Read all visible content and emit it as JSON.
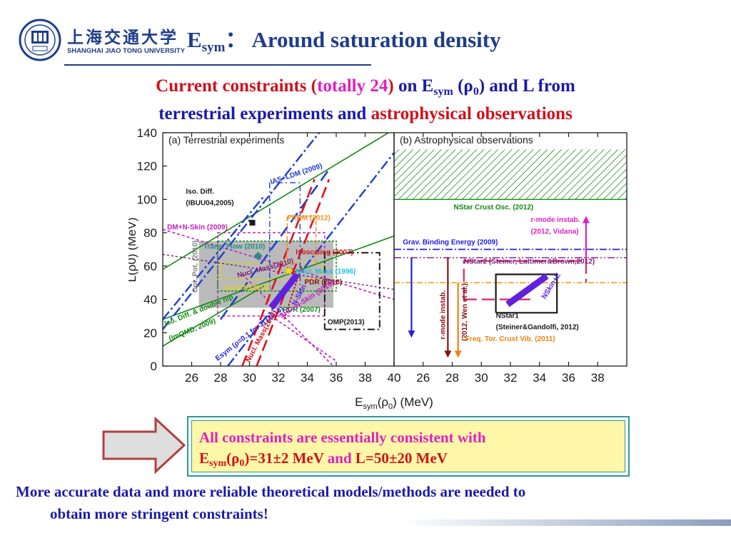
{
  "header": {
    "logo_cn": "上海交通大学",
    "logo_en": "SHANGHAI JIAO TONG UNIVERSITY",
    "logo_year": "1896",
    "title_main": "E",
    "title_sub": "sym",
    "title_rest": "： Around saturation density"
  },
  "heading": {
    "p1": "Current constraints (",
    "p2": "totally 24",
    "p3": ")",
    "p4": " on E",
    "p4_sub": "sym",
    "p5": " (ρ",
    "p5_sub": "0",
    "p6": ") and L from",
    "p7": "terrestrial experiments and ",
    "p8": "astrophysical observations"
  },
  "chart_data": [
    {
      "type": "line",
      "title": "(a) Terrestrial experiments",
      "xlim": [
        24,
        40
      ],
      "ylim": [
        0,
        140
      ],
      "xticks": [
        26,
        28,
        30,
        32,
        34,
        36,
        38,
        40
      ],
      "yticks": [
        0,
        20,
        40,
        60,
        80,
        100,
        120,
        140
      ],
      "xlabel_main": "E",
      "xlabel_sub": "sym",
      "xlabel_mid": "(ρ",
      "xlabel_sub2": "0",
      "xlabel_end": ") (MeV)",
      "ylabel": "L(ρ0) (MeV)",
      "grid": false,
      "series": [
        {
          "name": "Iso. Diff. (IBUU04,2005)",
          "color": "#1a1a1a"
        },
        {
          "name": "IAS+LDM (2009)",
          "color": "#1f3fd0"
        },
        {
          "name": "DM+N-Skin (2009)",
          "color": "#c020c0"
        },
        {
          "name": "FRDM (2012)",
          "color": "#f09020"
        },
        {
          "name": "Trans. Flow (2010)",
          "color": "#2a8a8a"
        },
        {
          "name": "Opt. Pot. (2010)",
          "color": "#808080"
        },
        {
          "name": "Nucl. Mass(2010)",
          "color": "#7a1a7a"
        },
        {
          "name": "Isoscaling (2007)",
          "color": "#d0111b"
        },
        {
          "name": "Iso.Diff.(2010)",
          "color": "#e0d020"
        },
        {
          "name": "Nucl. Mass (1996)",
          "color": "#20c0e0"
        },
        {
          "name": "PDR (2010)",
          "color": "#8a1010"
        },
        {
          "name": "Iso. Diff. & double n/p (ImQMD, 2009)",
          "color": "#108a10"
        },
        {
          "name": "PDR (2007)",
          "color": "#108a10"
        },
        {
          "name": "N-Skin",
          "color": "#6020e0"
        },
        {
          "name": "Esym (ρ=0.1 fm-3) (2013)",
          "color": "#2020e0"
        },
        {
          "name": "Nucl. Mass(2012)",
          "color": "#d0111b"
        },
        {
          "name": "SHF+N-Skin (2010)",
          "color": "#c020c0"
        },
        {
          "name": "OMP(2013)",
          "color": "#1a1a1a"
        }
      ],
      "lines": [
        {
          "color": "#108a10",
          "dash": "none",
          "width": 1.6,
          "points": [
            [
              24,
              58
            ],
            [
              40,
              142
            ]
          ]
        },
        {
          "color": "#108a10",
          "dash": "none",
          "width": 1.6,
          "points": [
            [
              24,
              28
            ],
            [
              40,
              78
            ]
          ]
        },
        {
          "color": "#108a10",
          "dash": "none",
          "width": 1.6,
          "points": [
            [
              24,
              12
            ],
            [
              31,
              48
            ]
          ]
        },
        {
          "color": "#1f3fd0",
          "dash": "14 4 3 4",
          "width": 2.4,
          "points": [
            [
              24,
              22
            ],
            [
              35,
              142
            ]
          ]
        },
        {
          "color": "#1f3fd0",
          "dash": "14 4 3 4",
          "width": 2.4,
          "points": [
            [
              28.5,
              0
            ],
            [
              40,
              128
            ]
          ]
        },
        {
          "color": "#1f3fd0",
          "dash": "14 4 3 4",
          "width": 2.4,
          "points": [
            [
              24,
              28
            ],
            [
              31,
              102
            ]
          ]
        },
        {
          "color": "#1f3fd0",
          "dash": "16 8",
          "width": 2.6,
          "points": [
            [
              28,
              28
            ],
            [
              35.5,
              118
            ]
          ]
        },
        {
          "color": "#c020c0",
          "dash": "4 3",
          "width": 1.6,
          "points": [
            [
              24,
              82
            ],
            [
              40,
              40
            ]
          ]
        },
        {
          "color": "#c020c0",
          "dash": "4 3",
          "width": 1.6,
          "points": [
            [
              29.5,
              55
            ],
            [
              35.8,
              0
            ]
          ]
        },
        {
          "color": "#c020c0",
          "dash": "4 3",
          "width": 1.6,
          "points": [
            [
              31.5,
              30
            ],
            [
              36,
              3
            ]
          ]
        },
        {
          "color": "#7a1a7a",
          "dash": "3 3",
          "width": 1.4,
          "points": [
            [
              24,
              67
            ],
            [
              40,
              46
            ]
          ]
        },
        {
          "color": "#e0111b",
          "dash": "16 7",
          "width": 2.6,
          "points": [
            [
              29.5,
              0
            ],
            [
              34.5,
              112
            ]
          ]
        },
        {
          "color": "#e0111b",
          "dash": "16 7",
          "width": 2.6,
          "points": [
            [
              30.5,
              0
            ],
            [
              35.5,
              112
            ]
          ]
        },
        {
          "color": "#d0111b",
          "dash": "3 2",
          "width": 2,
          "points": [
            [
              32.4,
              28
            ],
            [
              33.6,
              60
            ]
          ]
        },
        {
          "color": "#1a1a1a",
          "dash": "10 4 2 4",
          "width": 2,
          "points": [
            [
              35.2,
              22
            ],
            [
              39,
              22
            ],
            [
              39,
              68
            ],
            [
              35.2,
              68
            ],
            [
              35.2,
              22
            ]
          ]
        },
        {
          "color": "#1f3fd0",
          "dash": "8 4 2 4",
          "width": 1.4,
          "points": [
            [
              31.4,
              45
            ],
            [
              31.4,
              110
            ],
            [
              33.5,
              110
            ],
            [
              33.5,
              45
            ]
          ]
        },
        {
          "color": "#f09020",
          "dash": "6 3",
          "width": 1.4,
          "points": [
            [
              32.6,
              60
            ],
            [
              32.6,
              90
            ],
            [
              34.6,
              90
            ],
            [
              34.6,
              60
            ]
          ]
        }
      ],
      "rects": [
        {
          "x0": 26.5,
          "x1": 35.8,
          "y0": 35,
          "y1": 75,
          "fill": "#a9a9a9",
          "opacity": 0.8
        },
        {
          "x0": 28,
          "x1": 35,
          "y0": 52,
          "y1": 62,
          "fill": "none",
          "stroke": "#e0d020",
          "dash": "4 2"
        },
        {
          "x0": 27.8,
          "x1": 35.2,
          "y0": 30,
          "y1": 80,
          "fill": "none",
          "stroke": "#c020c0",
          "dash": "4 3"
        },
        {
          "x0": 27.8,
          "x1": 36,
          "y0": 45,
          "y1": 75,
          "fill": "none",
          "stroke": "#108a10",
          "dash": "3 2"
        }
      ],
      "band": {
        "color": "#6020e0",
        "from": [
          31.5,
          35
        ],
        "to": [
          33.3,
          55
        ],
        "width": 9
      },
      "markers": [
        {
          "x": 30.2,
          "y": 86,
          "shape": "square",
          "color": "#1a1a1a"
        },
        {
          "x": 30.6,
          "y": 66,
          "shape": "diamond",
          "color": "#2a8a8a"
        },
        {
          "x": 32.7,
          "y": 57,
          "shape": "star",
          "color": "#f0e020"
        }
      ],
      "labels": [
        {
          "text": "Iso. Diff.",
          "x": 25.6,
          "y": 103.5,
          "color": "#1a1a1a",
          "size": 10,
          "weight": "bold"
        },
        {
          "text": "(IBUU04,2005)",
          "x": 25.6,
          "y": 96.5,
          "color": "#1a1a1a",
          "size": 10,
          "weight": "bold"
        },
        {
          "text": "IAS+LDM (2009)",
          "x": 31.5,
          "y": 109,
          "color": "#1f3fd0",
          "size": 10,
          "weight": "bold",
          "rot": -18
        },
        {
          "text": "DM+N-Skin (2009)",
          "x": 24.3,
          "y": 82,
          "color": "#c020c0",
          "size": 10,
          "weight": "bold"
        },
        {
          "text": "FRDM (2012)",
          "x": 32.6,
          "y": 87.5,
          "color": "#f09020",
          "size": 10,
          "weight": "bold"
        },
        {
          "text": "Trans. Flow (2010)",
          "x": 26.8,
          "y": 70.5,
          "color": "#2a8a8a",
          "size": 10,
          "weight": "bold"
        },
        {
          "text": "Opt.  Pot. (2010)",
          "x": 26.4,
          "y": 44,
          "color": "#808080",
          "size": 10,
          "weight": "bold",
          "rot": -90
        },
        {
          "text": "Nucl. Mass(2010)",
          "x": 29.2,
          "y": 53,
          "color": "#7a1a7a",
          "size": 10,
          "weight": "bold",
          "rot": -15
        },
        {
          "text": "Isoscaling (2007)",
          "x": 33.2,
          "y": 67,
          "color": "#d0111b",
          "size": 10,
          "weight": "bold"
        },
        {
          "text": "Iso.Diff.(2010)",
          "x": 28.2,
          "y": 45.5,
          "color": "#e0d020",
          "size": 10,
          "weight": "bold"
        },
        {
          "text": "Nucl. Mass (1996)",
          "x": 33.2,
          "y": 55.5,
          "color": "#20c0e0",
          "size": 10,
          "weight": "bold"
        },
        {
          "text": "PDR (2010)",
          "x": 33.8,
          "y": 49,
          "color": "#8a1010",
          "size": 10,
          "weight": "bold"
        },
        {
          "text": "Iso. Diff. & double n/p",
          "x": 24.2,
          "y": 24,
          "color": "#108a10",
          "size": 10,
          "weight": "bold",
          "rot": -22
        },
        {
          "text": "(ImQMD, 2009)",
          "x": 24.5,
          "y": 15,
          "color": "#108a10",
          "size": 10,
          "weight": "bold",
          "rot": -22
        },
        {
          "text": "PDR (2007)",
          "x": 32.3,
          "y": 32.5,
          "color": "#108a10",
          "size": 10,
          "weight": "bold"
        },
        {
          "text": "N-Skin",
          "x": 33.2,
          "y": 36,
          "color": "#6020e0",
          "size": 10,
          "weight": "bold",
          "rot": -62
        },
        {
          "text": "Esym (ρ=0.1 fm-3) (2013)",
          "x": 27.8,
          "y": 3,
          "color": "#2020e0",
          "size": 10,
          "weight": "bold",
          "rot": -38
        },
        {
          "text": "Nucl. Mass(2012)",
          "x": 30,
          "y": 2,
          "color": "#d0111b",
          "size": 10,
          "weight": "bold",
          "rot": -62
        },
        {
          "text": "SHF+N-Skin (2010)",
          "x": 32.2,
          "y": 28.5,
          "color": "#c020c0",
          "size": 10,
          "weight": "bold",
          "rot": -33
        },
        {
          "text": "OMP(2013)",
          "x": 35.4,
          "y": 25,
          "color": "#1a1a1a",
          "size": 10,
          "weight": "bold"
        }
      ]
    },
    {
      "type": "line",
      "title": "(b) Astrophysical observations",
      "xlim": [
        24,
        40
      ],
      "ylim": [
        0,
        140
      ],
      "xticks": [
        26,
        28,
        30,
        32,
        34,
        36,
        38
      ],
      "yticks": [],
      "grid": false,
      "series": [
        {
          "name": "NStar Crust Osc. (2012)",
          "color": "#108a10"
        },
        {
          "name": "r-mode instab. (2012, Vidana)",
          "color": "#e020c0"
        },
        {
          "name": "Grav. Binding Energy (2009)",
          "color": "#2020e0"
        },
        {
          "name": "NStar2 (Steiner, Lattimer&Brown,2012)",
          "color": "#7a1a7a"
        },
        {
          "name": "r-mode instab. (2012, Wen et al.)",
          "color": "#8a1010"
        },
        {
          "name": "Freq. Tor. Crust Vib. (2011)",
          "color": "#f08010"
        },
        {
          "name": "NStar1 (Steiner&Gandolfi, 2012)",
          "color": "#1a1a1a"
        },
        {
          "name": "NSkin+E",
          "color": "#6020e0"
        }
      ],
      "lines": [
        {
          "color": "#108a10",
          "dash": "none",
          "width": 1.4,
          "points": [
            [
              24,
              100
            ],
            [
              40,
              100
            ]
          ]
        },
        {
          "color": "#2020e0",
          "dash": "10 3 2 3",
          "width": 1.8,
          "points": [
            [
              24,
              70
            ],
            [
              40,
              70
            ]
          ]
        },
        {
          "color": "#7a1a7a",
          "dash": "10 3 2 3 2 3",
          "width": 1.4,
          "points": [
            [
              24,
              65
            ],
            [
              40,
              65
            ]
          ]
        },
        {
          "color": "#f0a010",
          "dash": "8 3 2 3",
          "width": 1.6,
          "points": [
            [
              24,
              50
            ],
            [
              40,
              50
            ]
          ]
        },
        {
          "color": "#e0206a",
          "dash": "18 7",
          "width": 2.2,
          "points": [
            [
              28.8,
              40
            ],
            [
              28.8,
              63
            ],
            [
              37.2,
              63
            ],
            [
              37.2,
              50
            ]
          ]
        },
        {
          "color": "#e0206a",
          "dash": "18 7",
          "width": 2.2,
          "points": [
            [
              28.8,
              40
            ],
            [
              33.5,
              40
            ]
          ]
        },
        {
          "color": "#1a1a1a",
          "dash": "none",
          "width": 2.2,
          "points": [
            [
              31,
              32
            ],
            [
              31,
              55
            ],
            [
              35.2,
              55
            ],
            [
              35.2,
              32
            ],
            [
              31,
              32
            ]
          ]
        }
      ],
      "hatch": {
        "x0": 24,
        "x1": 40,
        "y0": 100,
        "y1": 130,
        "color": "#108a10"
      },
      "band": {
        "color": "#6020e0",
        "from": [
          31.8,
          37
        ],
        "to": [
          34.5,
          54
        ],
        "width": 9
      },
      "arrows": [
        {
          "x": 25.2,
          "y0": 65,
          "y1": 17,
          "color": "#2020e0"
        },
        {
          "x": 27.7,
          "y0": 65,
          "y1": 5,
          "color": "#8a1010"
        },
        {
          "x": 28.4,
          "y0": 50,
          "y1": 5,
          "color": "#f08010"
        },
        {
          "x": 37.2,
          "y0": 63,
          "y1": 90,
          "color": "#e020c0"
        }
      ],
      "labels": [
        {
          "text": "NStar Crust Osc. (2012)",
          "x": 28.1,
          "y": 94,
          "color": "#108a10",
          "size": 10,
          "weight": "bold"
        },
        {
          "text": "r-mode instab.",
          "x": 33.4,
          "y": 86.5,
          "color": "#e020c0",
          "size": 10,
          "weight": "bold"
        },
        {
          "text": "(2012, Vidana)",
          "x": 33.4,
          "y": 79.5,
          "color": "#e020c0",
          "size": 10,
          "weight": "bold"
        },
        {
          "text": "Grav. Binding Energy (2009)",
          "x": 24.6,
          "y": 73,
          "color": "#2020e0",
          "size": 10,
          "weight": "bold"
        },
        {
          "text": "NStar2 (Steiner, Lattimer&Brown,2012)",
          "x": 28.8,
          "y": 61.5,
          "color": "#7a1a7a",
          "size": 10,
          "weight": "bold"
        },
        {
          "text": "r-mode instab.",
          "x": 27.5,
          "y": 16,
          "color": "#8a1010",
          "size": 10,
          "weight": "bold",
          "rot": -90
        },
        {
          "text": "(2012, Wen et al.)",
          "x": 29,
          "y": 15,
          "color": "#8a1010",
          "size": 10,
          "weight": "bold",
          "rot": -90
        },
        {
          "text": "Freq. Tor. Crust Vib. (2011)",
          "x": 28.9,
          "y": 15,
          "color": "#f08010",
          "size": 10,
          "weight": "bold"
        },
        {
          "text": "NStar1",
          "x": 31,
          "y": 29,
          "color": "#1a1a1a",
          "size": 10,
          "weight": "bold"
        },
        {
          "text": "(Steiner&Gandolfi, 2012)",
          "x": 31,
          "y": 22,
          "color": "#1a1a1a",
          "size": 10,
          "weight": "bold"
        },
        {
          "text": "NSkin+E",
          "x": 34.4,
          "y": 40,
          "color": "#6020e0",
          "size": 10,
          "weight": "bold",
          "rot": -58
        }
      ]
    }
  ],
  "callout": {
    "line1": "All constraints are essentially consistent with",
    "e": "E",
    "e_sub": "sym",
    "rho": "(ρ",
    "rho_sub": "0",
    "value1": ")=31±2 MeV",
    "and": " and ",
    "value2": "L=50±20 MeV"
  },
  "bottom": {
    "line1": "More accurate data and more reliable theoretical models/methods are needed to",
    "line2": "obtain more stringent constraints!"
  }
}
